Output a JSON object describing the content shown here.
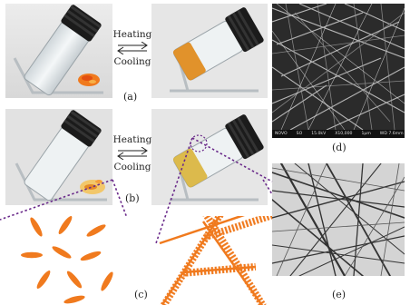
{
  "arrows": {
    "top": {
      "heating": "Heating",
      "cooling": "Cooling"
    },
    "middle": {
      "heating": "Heating",
      "cooling": "Cooling"
    }
  },
  "panel_labels": {
    "a": "(a)",
    "b": "(b)",
    "c": "(c)",
    "d": "(d)",
    "e": "(e)"
  },
  "sem_info": [
    "NOVO",
    "SO",
    "15.0kV",
    "X10,000",
    "1μm",
    "WD 7.6mm"
  ],
  "colors": {
    "orange": "#f07a1e",
    "dashed_purple": "#6a2a8a",
    "tem_background": "#d4d4d4"
  }
}
